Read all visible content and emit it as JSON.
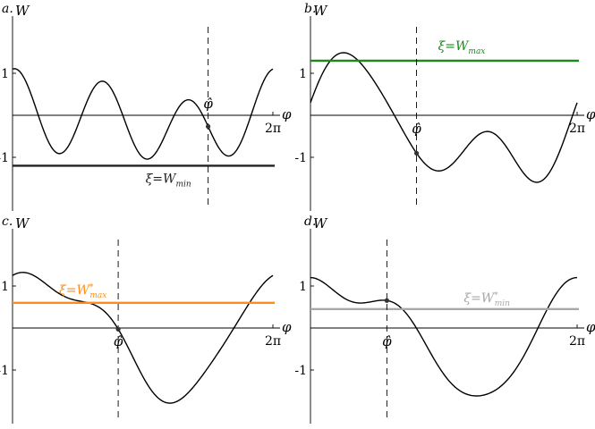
{
  "chart_data": [
    {
      "type": "line",
      "panel_label": "a.",
      "ylabel": "W",
      "xlabel": "φ",
      "x_tick_label": "2π",
      "y_tick_labels": [
        "1",
        "-1"
      ],
      "x_range": [
        0,
        6.2832
      ],
      "y_range": [
        -2.2,
        1.75
      ],
      "curve": {
        "a0": -0.1,
        "a": [
          0.2,
          0.15,
          0.85
        ],
        "b": [
          0.15,
          -0.1,
          0.15
        ]
      },
      "hat_phi": 4.72,
      "marker_label": "φ̂",
      "marker_label_pos": "above",
      "level": {
        "name": "ξ=W",
        "sub": "min",
        "sup": "",
        "value": -1.2,
        "color": "#222222"
      },
      "colors": {
        "curve": "#000000"
      }
    },
    {
      "type": "line",
      "panel_label": "b.",
      "ylabel": "W",
      "xlabel": "φ",
      "x_tick_label": "2π",
      "y_tick_labels": [
        "1",
        "-1"
      ],
      "x_range": [
        0,
        6.2832
      ],
      "y_range": [
        -2.2,
        1.75
      ],
      "curve": {
        "a0": -0.3,
        "a": [
          0.6,
          -0.2,
          0.2
        ],
        "b": [
          0.9,
          0.8,
          0.1
        ]
      },
      "hat_phi": 2.5,
      "marker_label": "φ̂",
      "marker_label_pos": "below",
      "level": {
        "name": "ξ=W",
        "sub": "max",
        "sup": "",
        "value": 1.3,
        "color": "#1a8a1a"
      },
      "colors": {
        "curve": "#000000"
      }
    },
    {
      "type": "line",
      "panel_label": "c.",
      "ylabel": "W",
      "xlabel": "φ",
      "x_tick_label": "2π",
      "y_tick_labels": [
        "1",
        "-1"
      ],
      "x_range": [
        0,
        6.2832
      ],
      "y_range": [
        -2.2,
        1.75
      ],
      "curve": {
        "a0": -0.05,
        "a": [
          1.1,
          0.1,
          0.1
        ],
        "b": [
          0.9,
          -0.3,
          0.1
        ]
      },
      "hat_phi": 2.55,
      "marker_label": "φ̂",
      "marker_label_pos": "below",
      "level": {
        "name": "ξ=W",
        "sub": "max",
        "sup": "*",
        "value": 0.6,
        "color": "#ff8c1a"
      },
      "colors": {
        "curve": "#000000"
      }
    },
    {
      "type": "line",
      "panel_label": "d.",
      "ylabel": "W",
      "xlabel": "φ",
      "x_tick_label": "2π",
      "y_tick_labels": [
        "1",
        "-1"
      ],
      "x_range": [
        0,
        6.2832
      ],
      "y_range": [
        -2.2,
        1.75
      ],
      "curve": {
        "a0": -0.1,
        "a": [
          1.0,
          0.15,
          0.15
        ],
        "b": [
          0.85,
          -0.35,
          -0.05
        ]
      },
      "hat_phi": 1.8,
      "marker_label": "φ̂",
      "marker_label_pos": "below",
      "level": {
        "name": "ξ=W",
        "sub": "min",
        "sup": "*",
        "value": 0.45,
        "color": "#a8a8a8"
      },
      "colors": {
        "curve": "#000000"
      }
    }
  ]
}
